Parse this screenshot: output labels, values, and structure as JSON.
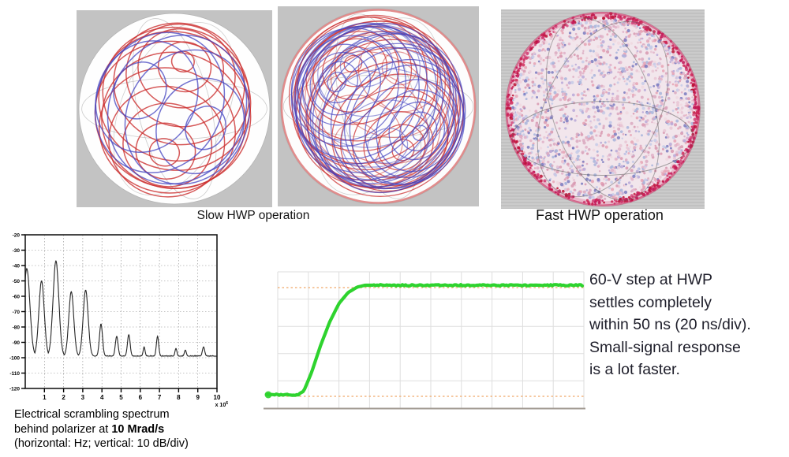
{
  "top_row": {
    "slow_label": "Slow HWP operation",
    "fast_label": "Fast HWP operation",
    "panel_bg": "#c3c3c3",
    "trace_colors": {
      "red": "#cc3030",
      "blue": "#4343c0",
      "wireframe": "#9a9a9a"
    },
    "fast_sphere": {
      "body_palette": [
        "#e9c5d5",
        "#dba8c0",
        "#b8a8d8",
        "#a8b4dc",
        "#e6a2b4",
        "#f0d8e0",
        "#c6cae8",
        "#d898b0",
        "#7a7ac0",
        "#e0b0c8"
      ],
      "rim_palette": [
        "#c2185b",
        "#d02858",
        "#bb1133",
        "#d4457a"
      ],
      "rim_color": "#c21850",
      "base_fill": "#f2e6ec",
      "wireframe": "#606060"
    }
  },
  "spectrum_caption": {
    "line1": "Electrical scrambling spectrum",
    "line2_pre": "behind polarizer at ",
    "line2_bold": "10 Mrad/s",
    "line3": "(horizontal: Hz; vertical: 10 dB/div)"
  },
  "note": {
    "color": "#20202c",
    "lines": [
      "60-V step at HWP",
      "settles completely",
      "within 50 ns (20 ns/div).",
      "Small-signal response",
      "is a lot faster."
    ]
  },
  "chart_data": [
    {
      "type": "line",
      "name": "electrical-scrambling-spectrum",
      "title": "Electrical scrambling spectrum behind polarizer at 10 Mrad/s",
      "xlabel": "horizontal: Hz",
      "ylabel": "vertical: 10 dB/div",
      "xlim": [
        0,
        10
      ],
      "ylim": [
        -120,
        -20
      ],
      "x_ticks": [
        1,
        2,
        3,
        4,
        5,
        6,
        7,
        8,
        9,
        10
      ],
      "x_scale_label": "x 10",
      "x_scale_exp": "6",
      "y_ticks": [
        -20,
        -30,
        -40,
        -50,
        -60,
        -70,
        -80,
        -90,
        -100,
        -110,
        -120
      ],
      "grid": "dotted",
      "line_color": "#252525",
      "baseline_dB": -99,
      "peaks": [
        {
          "x": 0.08,
          "y": -42,
          "w": 0.16
        },
        {
          "x": 0.85,
          "y": -50,
          "w": 0.14
        },
        {
          "x": 1.6,
          "y": -37,
          "w": 0.15
        },
        {
          "x": 2.4,
          "y": -57,
          "w": 0.13
        },
        {
          "x": 3.15,
          "y": -56,
          "w": 0.13
        },
        {
          "x": 3.95,
          "y": -78,
          "w": 0.08
        },
        {
          "x": 4.77,
          "y": -86,
          "w": 0.07
        },
        {
          "x": 5.4,
          "y": -85,
          "w": 0.07
        },
        {
          "x": 6.2,
          "y": -93,
          "w": 0.05
        },
        {
          "x": 6.9,
          "y": -86,
          "w": 0.06
        },
        {
          "x": 7.86,
          "y": -94,
          "w": 0.05
        },
        {
          "x": 8.35,
          "y": -95,
          "w": 0.05
        },
        {
          "x": 9.3,
          "y": -93,
          "w": 0.06
        }
      ]
    },
    {
      "type": "line",
      "name": "hwp-step-response",
      "x_unit": "ns",
      "time_per_div_ns": 20,
      "divisions_x": 10,
      "trace_color": "#2ed32e",
      "ref_line_color": "#f0a868",
      "grid_color": "#dedede",
      "axis_color": "#a29a92",
      "ref_levels_V": {
        "low": 0,
        "high": 60
      },
      "step_volts": 60,
      "settle_ns": 50,
      "x_ns": [
        0,
        13,
        17,
        22,
        28,
        34,
        40,
        46,
        52,
        57,
        62,
        200
      ],
      "y_V": [
        0,
        0,
        2,
        12,
        27,
        40,
        50,
        56,
        59,
        60,
        60,
        60
      ]
    }
  ]
}
